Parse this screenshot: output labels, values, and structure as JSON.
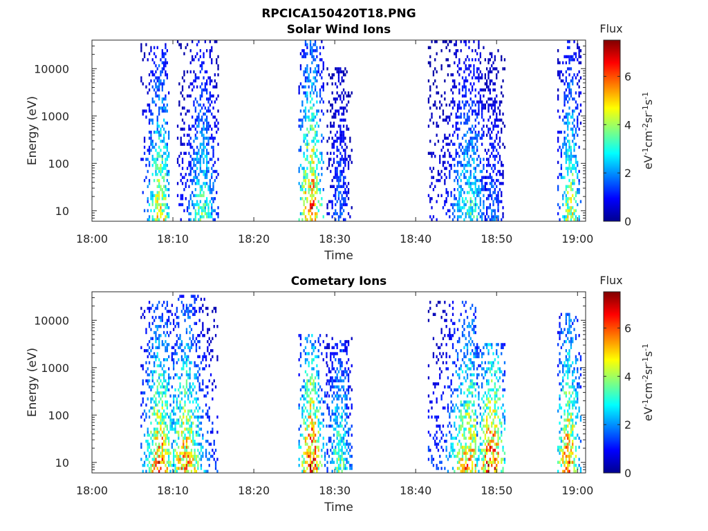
{
  "figure_title": "RPCICA150420T18.PNG",
  "chart_data": [
    {
      "type": "heatmap",
      "title": "Solar Wind Ions",
      "xlabel": "Time",
      "ylabel": "Energy (eV)",
      "xticks": [
        "18:00",
        "18:10",
        "18:20",
        "18:30",
        "18:40",
        "18:50",
        "19:00"
      ],
      "xlim_min": [
        0,
        61
      ],
      "yscale": "log",
      "ylim": [
        6,
        40000
      ],
      "yticks": [
        10,
        100,
        1000,
        10000
      ],
      "ytick_labels": [
        "10",
        "100",
        "1000",
        "10000"
      ],
      "colorbar": {
        "label": "Flux",
        "unit": "eV-1cm-2sr-1s-1",
        "range": [
          0,
          7.5
        ],
        "ticks": [
          0,
          2,
          4,
          6
        ]
      },
      "colormap": "jet",
      "clusters": [
        {
          "t": [
            6,
            9.5
          ],
          "spread": 1.3,
          "peak": 8.3,
          "peak_flux": 5.2,
          "e_top": 30000
        },
        {
          "t": [
            10.5,
            15.5
          ],
          "spread": 1.5,
          "peak": 13.5,
          "peak_flux": 3.8,
          "e_top": 40000
        },
        {
          "t": [
            25.5,
            28.5
          ],
          "spread": 1.2,
          "peak": 27.0,
          "peak_flux": 7.0,
          "e_top": 40000
        },
        {
          "t": [
            29,
            32
          ],
          "spread": 1.0,
          "peak": 30.5,
          "peak_flux": 2.0,
          "e_top": 10000
        },
        {
          "t": [
            41.5,
            48.5
          ],
          "spread": 2.0,
          "peak": 46.5,
          "peak_flux": 3.5,
          "e_top": 35000
        },
        {
          "t": [
            48.5,
            51
          ],
          "spread": 1.0,
          "peak": 49.5,
          "peak_flux": 2.0,
          "e_top": 25000
        },
        {
          "t": [
            57.5,
            60.5
          ],
          "spread": 1.0,
          "peak": 59.0,
          "peak_flux": 5.0,
          "e_top": 40000
        }
      ]
    },
    {
      "type": "heatmap",
      "title": "Cometary Ions",
      "xlabel": "Time",
      "ylabel": "Energy (eV)",
      "xticks": [
        "18:00",
        "18:10",
        "18:20",
        "18:30",
        "18:40",
        "18:50",
        "19:00"
      ],
      "xlim_min": [
        0,
        61
      ],
      "yscale": "log",
      "ylim": [
        6,
        40000
      ],
      "yticks": [
        10,
        100,
        1000,
        10000
      ],
      "ytick_labels": [
        "10",
        "100",
        "1000",
        "10000"
      ],
      "colorbar": {
        "label": "Flux",
        "unit": "eV-1cm-2sr-1s-1",
        "range": [
          0,
          7.5
        ],
        "ticks": [
          0,
          2,
          4,
          6
        ]
      },
      "colormap": "jet",
      "clusters": [
        {
          "t": [
            6,
            10
          ],
          "spread": 1.5,
          "peak": 8.3,
          "peak_flux": 6.5,
          "e_top": 25000
        },
        {
          "t": [
            10,
            15.5
          ],
          "spread": 1.8,
          "peak": 11.5,
          "peak_flux": 6.0,
          "e_top": 30000
        },
        {
          "t": [
            25.5,
            29
          ],
          "spread": 1.2,
          "peak": 27.0,
          "peak_flux": 7.3,
          "e_top": 5000
        },
        {
          "t": [
            29,
            32
          ],
          "spread": 1.2,
          "peak": 30.5,
          "peak_flux": 4.0,
          "e_top": 4000
        },
        {
          "t": [
            41.5,
            47.5
          ],
          "spread": 2.0,
          "peak": 46.5,
          "peak_flux": 6.0,
          "e_top": 25000
        },
        {
          "t": [
            47.5,
            51
          ],
          "spread": 1.5,
          "peak": 49.3,
          "peak_flux": 7.0,
          "e_top": 3000
        },
        {
          "t": [
            57.5,
            60.5
          ],
          "spread": 1.2,
          "peak": 58.8,
          "peak_flux": 6.5,
          "e_top": 13000
        }
      ]
    }
  ]
}
